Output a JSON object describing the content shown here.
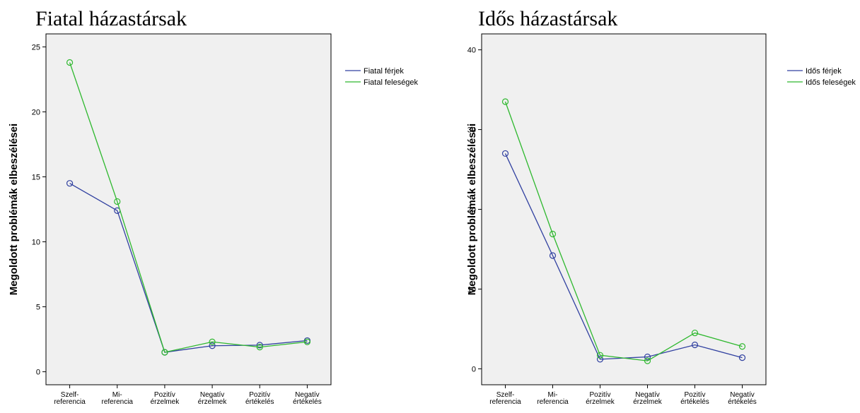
{
  "chart_data": [
    {
      "type": "line",
      "title": "Fiatal házastársak",
      "ylabel": "Megoldott problémák elbeszélései",
      "xlabel": "",
      "categories": [
        [
          "Szelf-",
          "referencia"
        ],
        [
          "Mi-",
          "referencia"
        ],
        [
          "Pozitív",
          "érzelmek"
        ],
        [
          "Negatív",
          "érzelmek"
        ],
        [
          "Pozitív",
          "értékelés"
        ],
        [
          "Negatív",
          "értékelés"
        ]
      ],
      "ylim": [
        -1,
        26
      ],
      "yticks": [
        0,
        5,
        10,
        15,
        20,
        25
      ],
      "series": [
        {
          "name": "Fiatal férjek",
          "color": "#3040a0",
          "values": [
            14.5,
            12.4,
            1.5,
            2.0,
            2.05,
            2.4
          ]
        },
        {
          "name": "Fiatal feleségek",
          "color": "#2eb82e",
          "values": [
            23.8,
            13.1,
            1.5,
            2.3,
            1.9,
            2.3
          ]
        }
      ],
      "legend": "top-right",
      "grid": false
    },
    {
      "type": "line",
      "title": "Idős házastársak",
      "ylabel": "Megoldott problémák elbeszélései",
      "xlabel": "",
      "categories": [
        [
          "Szelf-",
          "referencia"
        ],
        [
          "Mi-",
          "referencia"
        ],
        [
          "Pozitív",
          "érzelmek"
        ],
        [
          "Negatív",
          "érzelmek"
        ],
        [
          "Pozitív",
          "értékelés"
        ],
        [
          "Negatív",
          "értékelés"
        ]
      ],
      "ylim": [
        -2,
        42
      ],
      "yticks": [
        0,
        10,
        20,
        30,
        40
      ],
      "series": [
        {
          "name": "Idős férjek",
          "color": "#3040a0",
          "values": [
            27.0,
            14.2,
            1.2,
            1.5,
            3.0,
            1.4
          ]
        },
        {
          "name": "Idős feleségek",
          "color": "#2eb82e",
          "values": [
            33.5,
            16.9,
            1.7,
            1.0,
            4.5,
            2.8
          ]
        }
      ],
      "legend": "top-right",
      "grid": false
    }
  ]
}
